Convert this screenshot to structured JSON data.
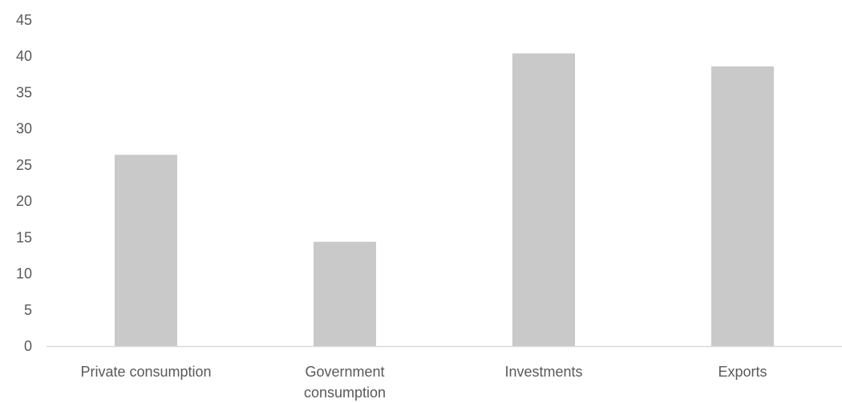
{
  "chart_data": {
    "type": "bar",
    "title": "",
    "xlabel": "",
    "ylabel": "",
    "categories": [
      [
        "Private consumption"
      ],
      [
        "Government",
        "consumption"
      ],
      [
        "Investments"
      ],
      [
        "Exports"
      ]
    ],
    "values": [
      26.4,
      14.4,
      40.4,
      38.6
    ],
    "ylim": [
      0,
      45
    ],
    "yticks": [
      0,
      5,
      10,
      15,
      20,
      25,
      30,
      35,
      40,
      45
    ],
    "grid": false,
    "legend": "none",
    "colors": {
      "bar": "#c9c9c9",
      "axis": "#d9d9d9",
      "text": "#595959"
    }
  }
}
